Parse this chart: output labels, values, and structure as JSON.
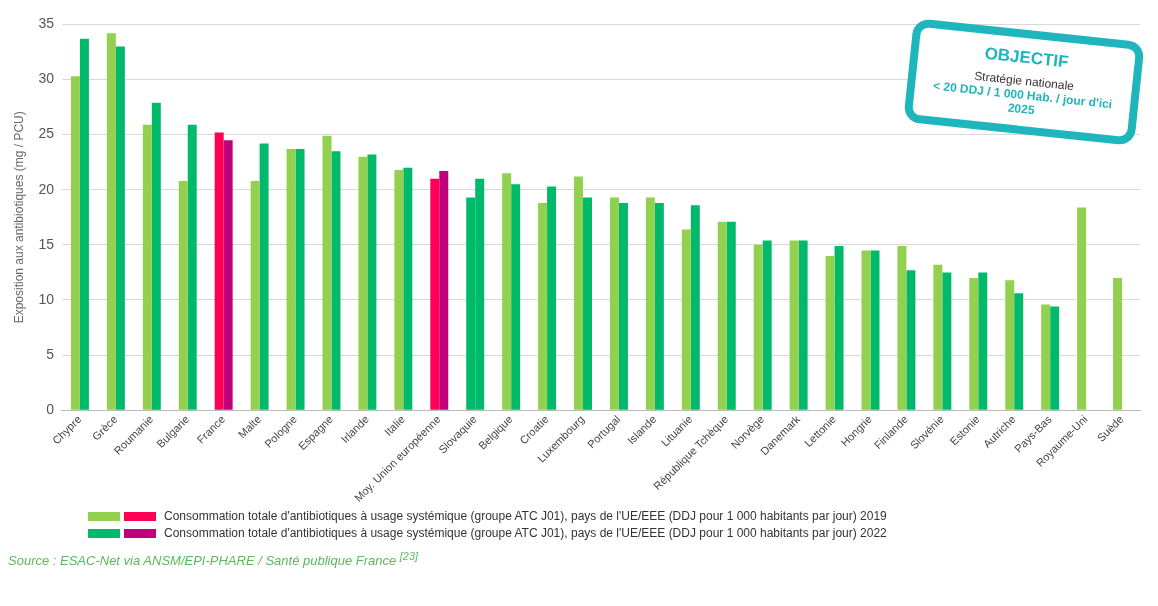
{
  "chart_data": {
    "type": "bar",
    "categories": [
      "Chypre",
      "Grèce",
      "Roumanie",
      "Bulgarie",
      "France",
      "Malte",
      "Pologne",
      "Espagne",
      "Irlande",
      "Italie",
      "Moy. Union européenne",
      "Slovaquie",
      "Belgique",
      "Croatie",
      "Luxembourg",
      "Portugal",
      "Islande",
      "Lituanie",
      "République Tchèque",
      "Norvège",
      "Danemark",
      "Lettonie",
      "Hongrie",
      "Finlande",
      "Slovénie",
      "Estonie",
      "Autriche",
      "Pays-Bas",
      "Royaume-Uni",
      "Suède"
    ],
    "series": [
      {
        "name": "Consommation totale d'antibiotiques à usage systémique (groupe ATC J01), pays de l'UE/EEE (DDJ pour 1 000 habitants par jour) 2019",
        "color": "#92d050",
        "colors": [
          "#92d050",
          "#92d050",
          "#92d050",
          "#92d050",
          "#ff0055",
          "#92d050",
          "#92d050",
          "#92d050",
          "#92d050",
          "#92d050",
          "#ff0055",
          "#00b96b",
          "#92d050",
          "#92d050",
          "#92d050",
          "#92d050",
          "#92d050",
          "#92d050",
          "#92d050",
          "#92d050",
          "#92d050",
          "#92d050",
          "#92d050",
          "#92d050",
          "#92d050",
          "#92d050",
          "#92d050",
          "#92d050",
          "#92d050",
          "#92d050"
        ],
        "values": [
          30.3,
          34.2,
          25.9,
          20.8,
          25.2,
          20.8,
          23.7,
          24.9,
          23.0,
          21.8,
          21.0,
          19.3,
          21.5,
          18.8,
          21.2,
          19.3,
          19.3,
          16.4,
          17.1,
          15.0,
          15.4,
          14.0,
          14.5,
          14.9,
          13.2,
          12.0,
          11.8,
          9.6,
          18.4,
          12.0
        ]
      },
      {
        "name": "Consommation totale d'antibiotiques à usage systémique (groupe ATC J01), pays de l'UE/EEE (DDJ pour 1 000 habitants par jour) 2022",
        "color": "#00b96b",
        "colors": [
          "#00b96b",
          "#00b96b",
          "#00b96b",
          "#00b96b",
          "#c0007a",
          "#00b96b",
          "#00b96b",
          "#00b96b",
          "#00b96b",
          "#00b96b",
          "#c0007a",
          "#00b96b",
          "#00b96b",
          "#00b96b",
          "#00b96b",
          "#00b96b",
          "#00b96b",
          "#00b96b",
          "#00b96b",
          "#00b96b",
          "#00b96b",
          "#00b96b",
          "#00b96b",
          "#00b96b",
          "#00b96b",
          "#00b96b",
          "#00b96b",
          "#00b96b",
          "#00b96b",
          "#00b96b"
        ],
        "values": [
          33.7,
          33.0,
          27.9,
          25.9,
          24.5,
          24.2,
          23.7,
          23.5,
          23.2,
          22.0,
          21.7,
          21.0,
          20.5,
          20.3,
          19.3,
          18.8,
          18.8,
          18.6,
          17.1,
          15.4,
          15.4,
          14.9,
          14.5,
          12.7,
          12.5,
          12.5,
          10.6,
          9.4,
          null,
          null
        ]
      }
    ],
    "ylabel": "Exposition aux antibiotiques (mg / PCU)",
    "ylim": [
      0,
      35
    ],
    "yticks": [
      0,
      5,
      10,
      15,
      20,
      25,
      30,
      35
    ],
    "grid": "y",
    "legend": "bottom",
    "annotations": [
      "OBJECTIF",
      "Stratégie nationale",
      "< 20 DDJ / 1 000 Hab. / jour d'ici 2025",
      "Source : ESAC-Net via ANSM/EPI-PHARE / Santé publique France $^{[23]}$"
    ]
  }
}
